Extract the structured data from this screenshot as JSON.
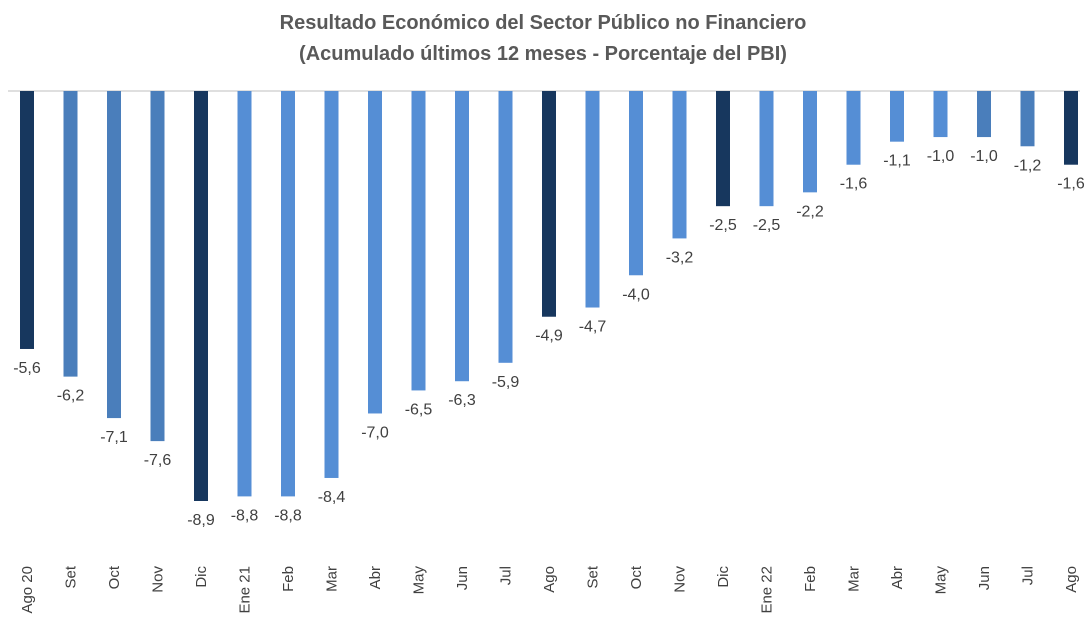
{
  "chart_data": {
    "type": "bar",
    "title": [
      "Resultado Económico del Sector Público no Financiero",
      "(Acumulado últimos 12 meses - Porcentaje del PBI)"
    ],
    "categories": [
      "Ago 20",
      "Set",
      "Oct",
      "Nov",
      "Dic",
      "Ene 21",
      "Feb",
      "Mar",
      "Abr",
      "May",
      "Jun",
      "Jul",
      "Ago",
      "Set",
      "Oct",
      "Nov",
      "Dic",
      "Ene 22",
      "Feb",
      "Mar",
      "Abr",
      "May",
      "Jun",
      "Jul",
      "Ago"
    ],
    "values": [
      -5.6,
      -6.2,
      -7.1,
      -7.6,
      -8.9,
      -8.8,
      -8.8,
      -8.4,
      -7.0,
      -6.5,
      -6.3,
      -5.9,
      -4.9,
      -4.7,
      -4.0,
      -3.2,
      -2.5,
      -2.5,
      -2.2,
      -1.6,
      -1.1,
      -1.0,
      -1.0,
      -1.2,
      -1.6
    ],
    "value_labels": [
      "-5,6",
      "-6,2",
      "-7,1",
      "-7,6",
      "-8,9",
      "-8,8",
      "-8,8",
      "-8,4",
      "-7,0",
      "-6,5",
      "-6,3",
      "-5,9",
      "-4,9",
      "-4,7",
      "-4,0",
      "-3,2",
      "-2,5",
      "-2,5",
      "-2,2",
      "-1,6",
      "-1,1",
      "-1,0",
      "-1,0",
      "-1,2",
      "-1,6"
    ],
    "colors": [
      "#17375e",
      "#4a7ebb",
      "#4a7ebb",
      "#4a7ebb",
      "#17375e",
      "#558ed5",
      "#558ed5",
      "#558ed5",
      "#558ed5",
      "#558ed5",
      "#558ed5",
      "#558ed5",
      "#17375e",
      "#558ed5",
      "#558ed5",
      "#558ed5",
      "#17375e",
      "#558ed5",
      "#558ed5",
      "#558ed5",
      "#558ed5",
      "#558ed5",
      "#4a7ebb",
      "#4a7ebb",
      "#17375e"
    ]
  }
}
